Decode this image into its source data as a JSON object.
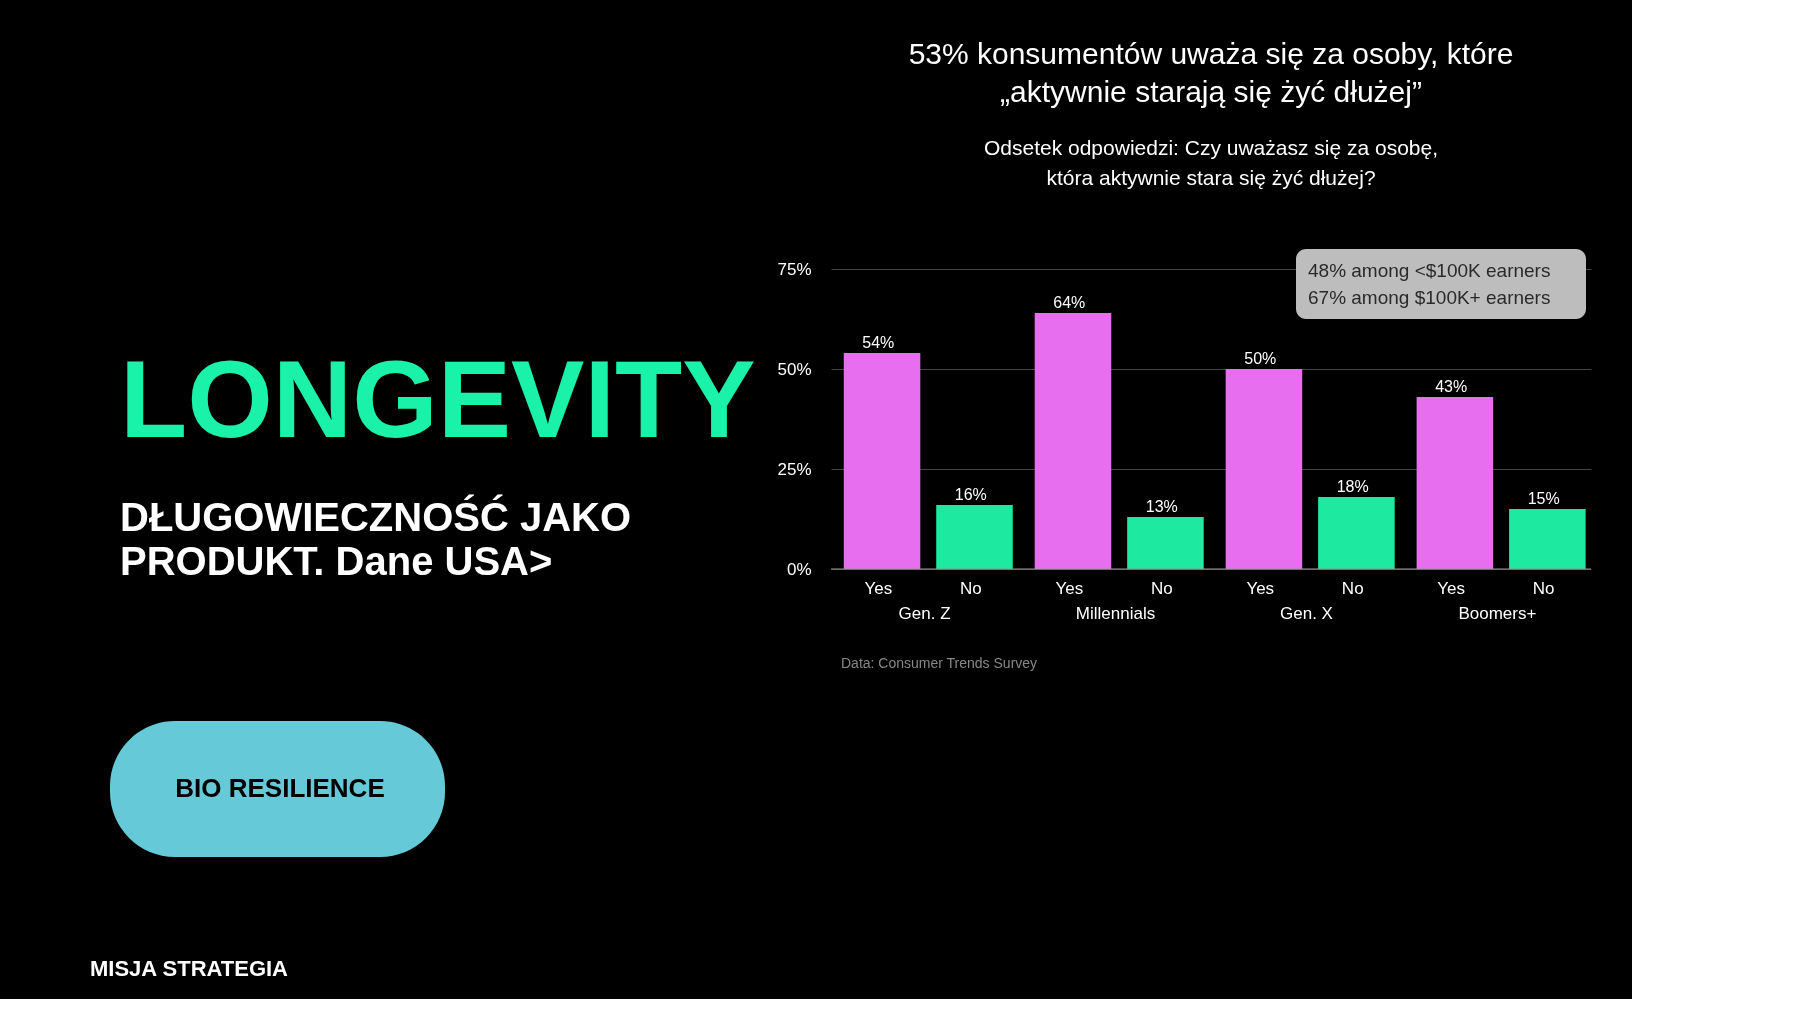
{
  "chart_data": {
    "type": "bar",
    "title": "53% konsumentów uważa się za osoby, które\n„aktywnie starają się żyć dłużej”",
    "subtitle": "Odsetek odpowiedzi: Czy uważasz się za osobę,\nktóra aktywnie stara się żyć dłużej?",
    "categories": [
      "Gen. Z",
      "Millennials",
      "Gen. X",
      "Boomers+"
    ],
    "series": [
      {
        "name": "Yes",
        "color": "#e86ef0",
        "values": [
          54,
          64,
          50,
          43
        ],
        "value_labels": [
          "54%",
          "64%",
          "50%",
          "43%"
        ]
      },
      {
        "name": "No",
        "color": "#1de9a0",
        "values": [
          16,
          13,
          18,
          15
        ],
        "value_labels": [
          "16%",
          "13%",
          "18%",
          "15%"
        ]
      }
    ],
    "ylim": [
      0,
      75
    ],
    "yticks": [
      {
        "value": 0,
        "label": "0%"
      },
      {
        "value": 25,
        "label": "25%"
      },
      {
        "value": 50,
        "label": "50%"
      },
      {
        "value": 75,
        "label": "75%"
      }
    ],
    "grid": "y",
    "legend": false,
    "annotations": [
      "LONGEVITY",
      "DŁUGOWIECZNOŚĆ JAKO\nPRODUKT. Dane USA>",
      "BIO RESILIENCE",
      "Data: Consumer Trends Survey",
      "MISJA STRATEGIA",
      "48% among <$100K earners\n67% among $100K+ earners"
    ]
  }
}
